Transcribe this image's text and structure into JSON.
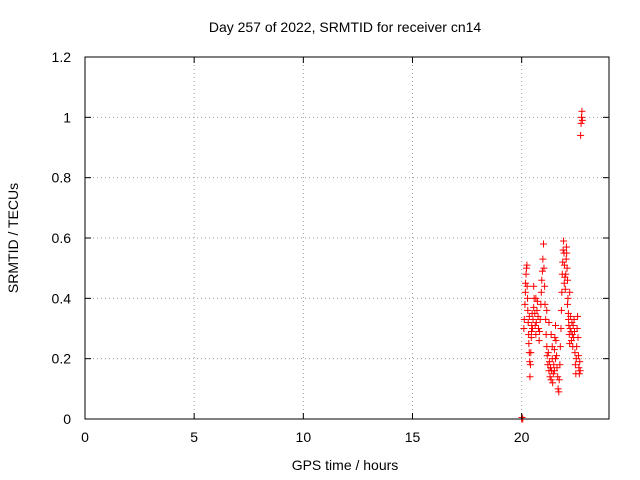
{
  "chart_data": {
    "type": "scatter",
    "title": "Day 257 of 2022, SRMTID for receiver cn14",
    "xlabel": "GPS time / hours",
    "ylabel": "SRMTID / TECUs",
    "xlim": [
      0,
      24
    ],
    "ylim": [
      0,
      1.2
    ],
    "xticks": [
      0,
      5,
      10,
      15,
      20
    ],
    "xtick_labels": [
      "0",
      "5",
      "10",
      "15",
      "20"
    ],
    "yticks": [
      0,
      0.2,
      0.4,
      0.6,
      0.8,
      1.0,
      1.2
    ],
    "ytick_labels": [
      "0",
      "0.2",
      "0.4",
      "0.6",
      "0.8",
      "1",
      "1.2"
    ],
    "grid": true,
    "marker": "+",
    "series": [
      {
        "name": "SRMTID",
        "color": "#ff0000",
        "points": [
          [
            20.0,
            0.0
          ],
          [
            20.02,
            0.005
          ],
          [
            20.05,
            0.0
          ],
          [
            20.1,
            0.3
          ],
          [
            20.12,
            0.33
          ],
          [
            20.15,
            0.38
          ],
          [
            20.17,
            0.42
          ],
          [
            20.18,
            0.45
          ],
          [
            20.2,
            0.48
          ],
          [
            20.22,
            0.5
          ],
          [
            20.24,
            0.51
          ],
          [
            20.25,
            0.44
          ],
          [
            20.27,
            0.4
          ],
          [
            20.28,
            0.36
          ],
          [
            20.3,
            0.32
          ],
          [
            20.32,
            0.28
          ],
          [
            20.33,
            0.25
          ],
          [
            20.35,
            0.22
          ],
          [
            20.37,
            0.19
          ],
          [
            20.38,
            0.14
          ],
          [
            20.4,
            0.18
          ],
          [
            20.42,
            0.22
          ],
          [
            20.44,
            0.27
          ],
          [
            20.46,
            0.31
          ],
          [
            20.48,
            0.35
          ],
          [
            20.5,
            0.3
          ],
          [
            20.52,
            0.33
          ],
          [
            20.55,
            0.37
          ],
          [
            20.57,
            0.4
          ],
          [
            20.6,
            0.35
          ],
          [
            20.62,
            0.31
          ],
          [
            20.65,
            0.28
          ],
          [
            20.67,
            0.32
          ],
          [
            20.7,
            0.36
          ],
          [
            20.72,
            0.39
          ],
          [
            20.75,
            0.34
          ],
          [
            20.77,
            0.3
          ],
          [
            20.8,
            0.26
          ],
          [
            20.82,
            0.29
          ],
          [
            20.85,
            0.33
          ],
          [
            20.88,
            0.38
          ],
          [
            20.9,
            0.42
          ],
          [
            20.92,
            0.46
          ],
          [
            20.95,
            0.49
          ],
          [
            20.97,
            0.53
          ],
          [
            21.0,
            0.58
          ],
          [
            21.02,
            0.5
          ],
          [
            21.05,
            0.44
          ],
          [
            21.07,
            0.38
          ],
          [
            21.1,
            0.33
          ],
          [
            21.12,
            0.28
          ],
          [
            21.15,
            0.24
          ],
          [
            21.17,
            0.21
          ],
          [
            21.2,
            0.18
          ],
          [
            21.22,
            0.22
          ],
          [
            21.25,
            0.16
          ],
          [
            21.27,
            0.19
          ],
          [
            21.3,
            0.14
          ],
          [
            21.32,
            0.17
          ],
          [
            21.35,
            0.13
          ],
          [
            21.37,
            0.16
          ],
          [
            21.4,
            0.2
          ],
          [
            21.42,
            0.12
          ],
          [
            21.45,
            0.15
          ],
          [
            21.47,
            0.18
          ],
          [
            21.5,
            0.23
          ],
          [
            21.52,
            0.27
          ],
          [
            21.55,
            0.31
          ],
          [
            21.57,
            0.26
          ],
          [
            21.6,
            0.21
          ],
          [
            21.62,
            0.17
          ],
          [
            21.65,
            0.14
          ],
          [
            21.67,
            0.1
          ],
          [
            21.7,
            0.09
          ],
          [
            21.72,
            0.13
          ],
          [
            21.75,
            0.18
          ],
          [
            21.77,
            0.24
          ],
          [
            21.8,
            0.3
          ],
          [
            21.82,
            0.36
          ],
          [
            21.84,
            0.42
          ],
          [
            21.86,
            0.48
          ],
          [
            21.88,
            0.52
          ],
          [
            21.9,
            0.56
          ],
          [
            21.92,
            0.59
          ],
          [
            21.94,
            0.55
          ],
          [
            21.96,
            0.51
          ],
          [
            21.98,
            0.47
          ],
          [
            22.0,
            0.43
          ],
          [
            22.02,
            0.48
          ],
          [
            22.04,
            0.53
          ],
          [
            22.06,
            0.55
          ],
          [
            22.08,
            0.5
          ],
          [
            22.1,
            0.46
          ],
          [
            22.12,
            0.4
          ],
          [
            22.14,
            0.35
          ],
          [
            22.16,
            0.31
          ],
          [
            22.18,
            0.28
          ],
          [
            22.2,
            0.25
          ],
          [
            22.22,
            0.3
          ],
          [
            22.24,
            0.34
          ],
          [
            22.26,
            0.29
          ],
          [
            22.28,
            0.26
          ],
          [
            22.3,
            0.32
          ],
          [
            22.32,
            0.28
          ],
          [
            22.34,
            0.24
          ],
          [
            22.36,
            0.31
          ],
          [
            22.38,
            0.27
          ],
          [
            22.4,
            0.33
          ],
          [
            22.42,
            0.29
          ],
          [
            22.44,
            0.22
          ],
          [
            22.46,
            0.18
          ],
          [
            22.48,
            0.15
          ],
          [
            22.5,
            0.2
          ],
          [
            22.52,
            0.24
          ],
          [
            22.54,
            0.3
          ],
          [
            22.56,
            0.34
          ],
          [
            22.58,
            0.27
          ],
          [
            22.6,
            0.21
          ],
          [
            22.62,
            0.17
          ],
          [
            22.64,
            0.15
          ],
          [
            22.66,
            0.19
          ],
          [
            22.68,
            0.16
          ],
          [
            22.7,
            0.94
          ],
          [
            22.72,
            0.98
          ],
          [
            22.74,
            1.0
          ],
          [
            22.76,
            1.02
          ],
          [
            22.78,
            0.99
          ],
          [
            21.5,
            0.16
          ],
          [
            21.55,
            0.2
          ],
          [
            21.4,
            0.24
          ],
          [
            21.35,
            0.28
          ],
          [
            21.25,
            0.32
          ],
          [
            21.15,
            0.36
          ],
          [
            20.65,
            0.4
          ],
          [
            20.55,
            0.44
          ],
          [
            20.45,
            0.29
          ],
          [
            20.35,
            0.34
          ],
          [
            22.1,
            0.38
          ],
          [
            22.2,
            0.42
          ],
          [
            22.05,
            0.57
          ],
          [
            21.95,
            0.45
          ],
          [
            22.15,
            0.33
          ]
        ]
      }
    ]
  }
}
